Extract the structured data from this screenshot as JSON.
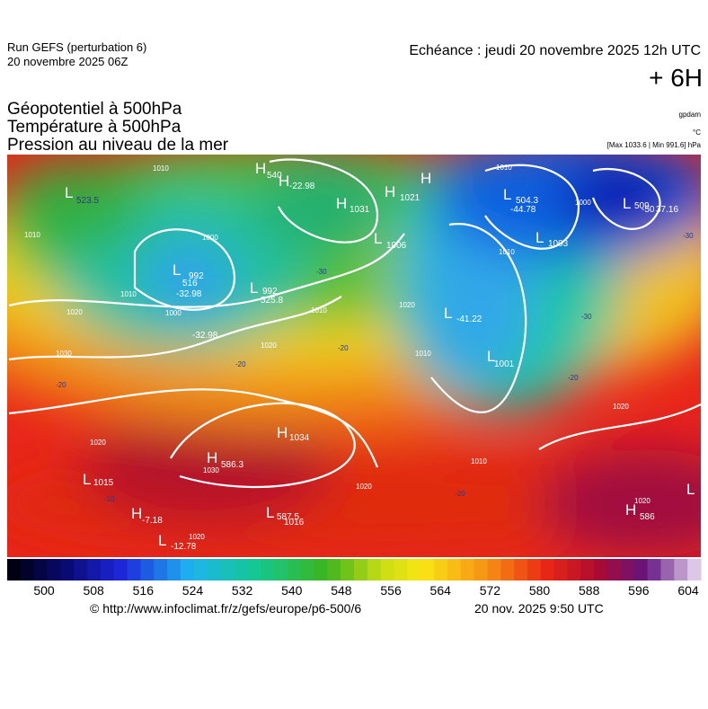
{
  "header": {
    "run": "Run GEFS (perturbation 6)",
    "run_date": "20 novembre 2025 06Z",
    "echeance": "Echéance : jeudi 20 novembre 2025 12h UTC",
    "lead": "+ 6H"
  },
  "titles": [
    "Géopotentiel à 500hPa",
    "Température à 500hPa",
    "Pression au niveau de la mer"
  ],
  "units": [
    "gpdam",
    "°C",
    "[Max 1033.6 | Min 991.6] hPa"
  ],
  "map_labels": [
    "L",
    "523.5",
    "H",
    "540",
    "H",
    "-22.98",
    "H",
    "1031",
    "H",
    "1021",
    "H",
    "L",
    "504.3",
    "-44.78",
    "L",
    "509",
    "-50",
    "37.16",
    "L",
    "1003",
    "L",
    "1006",
    "L",
    "992",
    "516",
    "-32.98",
    "L",
    "992",
    "525.8",
    "-32.98",
    "L",
    "-41.22",
    "L",
    "1001",
    "H",
    "1034",
    "H",
    "586.3",
    "L",
    "1015",
    "H",
    "-7.18",
    "L",
    "-12.78",
    "L",
    "587.5",
    "1016",
    "H",
    "586",
    "L",
    "1010",
    "1010",
    "1000",
    "1010",
    "1020",
    "1000",
    "1030",
    "1020",
    "-20",
    "-20",
    "-30",
    "1010",
    "1020",
    "1010",
    "1020",
    "1030",
    "1020",
    "1020",
    "1010",
    "-20",
    "1010",
    "-30",
    "-20",
    "1020",
    "1020",
    "-30",
    "1010",
    "1000",
    "-20",
    "-10"
  ],
  "colorbar": {
    "ticks": [
      500,
      508,
      516,
      524,
      532,
      540,
      548,
      556,
      564,
      572,
      580,
      588,
      596,
      604
    ]
  },
  "footer": {
    "source": "© http://www.infoclimat.fr/z/gefs/europe/p6-500/6",
    "time": "20 nov. 2025  9:50 UTC"
  }
}
